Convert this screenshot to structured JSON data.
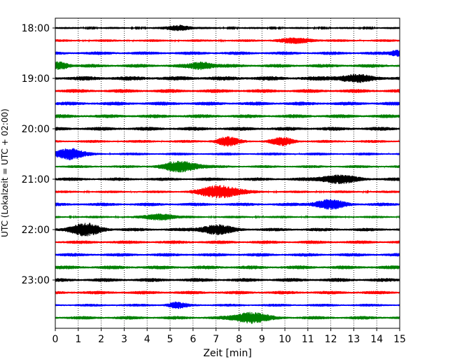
{
  "chart_data": {
    "type": "line",
    "title": "",
    "xlabel": "Zeit  [min]",
    "ylabel": "UTC (Lokalzeit = UTC + 02:00)",
    "xlim": [
      0,
      15
    ],
    "x_ticks": [
      0,
      1,
      2,
      3,
      4,
      5,
      6,
      7,
      8,
      9,
      10,
      11,
      12,
      13,
      14,
      15
    ],
    "x_tick_labels": [
      "0",
      "1",
      "2",
      "3",
      "4",
      "5",
      "6",
      "7",
      "8",
      "9",
      "10",
      "11",
      "12",
      "13",
      "14",
      "15"
    ],
    "y_tick_labels": [
      "18:00",
      "19:00",
      "20:00",
      "21:00",
      "22:00",
      "23:00"
    ],
    "y_tick_rows": [
      0,
      4,
      8,
      12,
      16,
      20
    ],
    "rows_per_hour": 4,
    "minutes_per_row": 15,
    "row_colors": [
      "#000000",
      "#ff0000",
      "#0000ff",
      "#008000"
    ],
    "grid": "vertical dotted",
    "traces": [
      {
        "start": "18:00",
        "color": "black",
        "base_amplitude": 0.18,
        "bursts": [
          {
            "t": 5.4,
            "amp": 0.45,
            "width": 0.5
          }
        ]
      },
      {
        "start": "18:15",
        "color": "red",
        "base_amplitude": 0.22,
        "bursts": [
          {
            "t": 10.5,
            "amp": 0.35,
            "width": 0.8
          }
        ]
      },
      {
        "start": "18:30",
        "color": "blue",
        "base_amplitude": 0.3,
        "bursts": [
          {
            "t": 14.9,
            "amp": 0.45,
            "width": 0.3
          }
        ]
      },
      {
        "start": "18:45",
        "color": "green",
        "base_amplitude": 0.32,
        "bursts": [
          {
            "t": 0.2,
            "amp": 0.55,
            "width": 0.4
          },
          {
            "t": 6.4,
            "amp": 0.55,
            "width": 0.5
          }
        ]
      },
      {
        "start": "19:00",
        "color": "black",
        "base_amplitude": 0.38,
        "bursts": [
          {
            "t": 13.0,
            "amp": 0.45,
            "width": 0.8
          }
        ]
      },
      {
        "start": "19:15",
        "color": "red",
        "base_amplitude": 0.33,
        "bursts": []
      },
      {
        "start": "19:30",
        "color": "blue",
        "base_amplitude": 0.33,
        "bursts": []
      },
      {
        "start": "19:45",
        "color": "green",
        "base_amplitude": 0.33,
        "bursts": []
      },
      {
        "start": "20:00",
        "color": "black",
        "base_amplitude": 0.33,
        "bursts": []
      },
      {
        "start": "20:15",
        "color": "red",
        "base_amplitude": 0.25,
        "bursts": [
          {
            "t": 7.5,
            "amp": 0.65,
            "width": 0.5
          },
          {
            "t": 9.9,
            "amp": 0.55,
            "width": 0.5
          }
        ]
      },
      {
        "start": "20:30",
        "color": "blue",
        "base_amplitude": 0.25,
        "bursts": [
          {
            "t": 0.6,
            "amp": 0.9,
            "width": 0.6
          }
        ]
      },
      {
        "start": "20:45",
        "color": "green",
        "base_amplitude": 0.25,
        "bursts": [
          {
            "t": 5.5,
            "amp": 0.8,
            "width": 0.8
          }
        ]
      },
      {
        "start": "21:00",
        "color": "black",
        "base_amplitude": 0.3,
        "bursts": [
          {
            "t": 12.3,
            "amp": 0.6,
            "width": 0.8
          }
        ]
      },
      {
        "start": "21:15",
        "color": "red",
        "base_amplitude": 0.22,
        "bursts": [
          {
            "t": 7.2,
            "amp": 1.0,
            "width": 0.9
          }
        ]
      },
      {
        "start": "21:30",
        "color": "blue",
        "base_amplitude": 0.3,
        "bursts": [
          {
            "t": 11.9,
            "amp": 0.65,
            "width": 0.7
          }
        ]
      },
      {
        "start": "21:45",
        "color": "green",
        "base_amplitude": 0.22,
        "bursts": [
          {
            "t": 4.6,
            "amp": 0.5,
            "width": 0.6
          }
        ]
      },
      {
        "start": "22:00",
        "color": "black",
        "base_amplitude": 0.3,
        "bursts": [
          {
            "t": 1.3,
            "amp": 0.9,
            "width": 0.7
          },
          {
            "t": 7.0,
            "amp": 0.7,
            "width": 0.7
          }
        ]
      },
      {
        "start": "22:15",
        "color": "red",
        "base_amplitude": 0.3,
        "bursts": []
      },
      {
        "start": "22:30",
        "color": "blue",
        "base_amplitude": 0.3,
        "bursts": []
      },
      {
        "start": "22:45",
        "color": "green",
        "base_amplitude": 0.33,
        "bursts": []
      },
      {
        "start": "23:00",
        "color": "black",
        "base_amplitude": 0.33,
        "bursts": []
      },
      {
        "start": "23:15",
        "color": "red",
        "base_amplitude": 0.3,
        "bursts": []
      },
      {
        "start": "23:30",
        "color": "blue",
        "base_amplitude": 0.25,
        "bursts": [
          {
            "t": 5.3,
            "amp": 0.4,
            "width": 0.4
          }
        ]
      },
      {
        "start": "23:45",
        "color": "green",
        "base_amplitude": 0.3,
        "bursts": [
          {
            "t": 8.5,
            "amp": 0.85,
            "width": 0.7
          }
        ]
      }
    ]
  }
}
